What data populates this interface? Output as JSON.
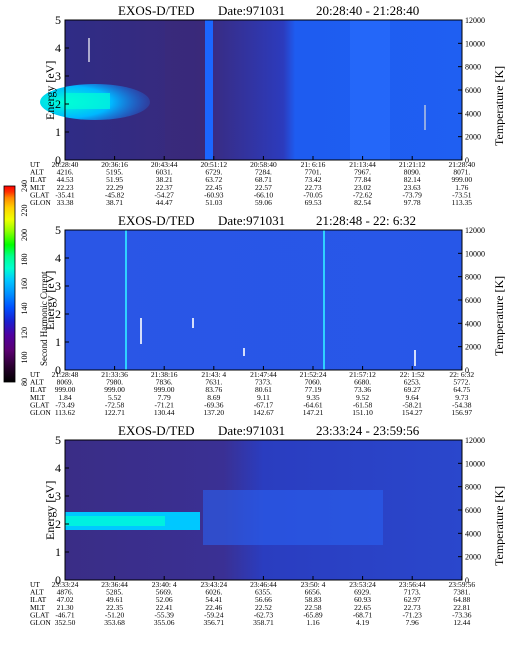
{
  "chart_data": {
    "type": "heatmap",
    "colorbar": {
      "label": "Second Harmonic Current",
      "ticks": [
        "80",
        "100",
        "120",
        "140",
        "160",
        "180",
        "200",
        "220",
        "240"
      ],
      "colors": [
        "#000000",
        "#2a0030",
        "#5a0070",
        "#5000a0",
        "#1a20d0",
        "#0050ff",
        "#0090ff",
        "#00c8ff",
        "#00ffd0",
        "#00ff90",
        "#00ff00",
        "#90ff00",
        "#f0ff00",
        "#ffd000",
        "#ff8800",
        "#ff3000",
        "#ff0000"
      ]
    },
    "panels": [
      {
        "title": "EXOS-D/TED",
        "date": "Date:971031",
        "time_range": "20:28:40 - 21:28:40",
        "ylabel_left": "Energy [eV]",
        "ylabel_right": "Temperature [K]",
        "yticks_left": [
          "0",
          "1",
          "2",
          "3",
          "4",
          "5"
        ],
        "yticks_right": [
          "0",
          "2000",
          "4000",
          "6000",
          "8000",
          "10000",
          "12000"
        ],
        "row_labels": [
          "UT",
          "ALT",
          "ILAT",
          "MLT",
          "GLAT",
          "GLON"
        ],
        "columns": [
          [
            "20:28:40",
            "4216.",
            "44.53",
            "22.23",
            "-35.41",
            "33.38"
          ],
          [
            "20:36:16",
            "5195.",
            "51.95",
            "22.29",
            "-45.82",
            "38.71"
          ],
          [
            "20:43:44",
            "6031.",
            "38.21",
            "22.37",
            "-54.27",
            "44.47"
          ],
          [
            "20:51:12",
            "6729.",
            "63.72",
            "22.45",
            "-60.93",
            "51.03"
          ],
          [
            "20:58:40",
            "7284.",
            "68.71",
            "22.57",
            "-66.10",
            "59.06"
          ],
          [
            "21: 6:16",
            "7701.",
            "73.42",
            "22.73",
            "-70.05",
            "69.53"
          ],
          [
            "21:13:44",
            "7967.",
            "77.84",
            "23.02",
            "-72.62",
            "82.54"
          ],
          [
            "21:21:12",
            "8090.",
            "82.14",
            "23.63",
            "-73.79",
            "97.78"
          ],
          [
            "21:28:40",
            "8071.",
            "999.00",
            "1.76",
            "-73.51",
            "113.35"
          ]
        ]
      },
      {
        "title": "EXOS-D/TED",
        "date": "Date:971031",
        "time_range": "21:28:48 - 22: 6:32",
        "ylabel_left": "Energy [eV]",
        "ylabel_right": "Temperature [K]",
        "yticks_left": [
          "0",
          "1",
          "2",
          "3",
          "4",
          "5"
        ],
        "yticks_right": [
          "0",
          "2000",
          "4000",
          "6000",
          "8000",
          "10000",
          "12000"
        ],
        "row_labels": [
          "UT",
          "ALT",
          "ILAT",
          "MLT",
          "GLAT",
          "GLON"
        ],
        "columns": [
          [
            "21:28:48",
            "8069.",
            "999.00",
            "1.84",
            "-73.49",
            "113.62"
          ],
          [
            "21:33:36",
            "7980.",
            "999.00",
            "5.52",
            "-72.58",
            "122.71"
          ],
          [
            "21:38:16",
            "7836.",
            "999.00",
            "7.79",
            "-71.21",
            "130.44"
          ],
          [
            "21:43: 4",
            "7631.",
            "83.76",
            "8.69",
            "-69.36",
            "137.20"
          ],
          [
            "21:47:44",
            "7373.",
            "80.61",
            "9.11",
            "-67.17",
            "142.67"
          ],
          [
            "21:52:24",
            "7060.",
            "77.19",
            "9.35",
            "-64.61",
            "147.21"
          ],
          [
            "21:57:12",
            "6680.",
            "73.36",
            "9.52",
            "-61.58",
            "151.10"
          ],
          [
            "22: 1:52",
            "6253.",
            "69.27",
            "9.64",
            "-58.21",
            "154.27"
          ],
          [
            "22: 6:32",
            "5772.",
            "64.75",
            "9.73",
            "-54.38",
            "156.97"
          ]
        ]
      },
      {
        "title": "EXOS-D/TED",
        "date": "Date:971031",
        "time_range": "23:33:24 - 23:59:56",
        "ylabel_left": "Energy [eV]",
        "ylabel_right": "Temperature [K]",
        "yticks_left": [
          "0",
          "1",
          "2",
          "3",
          "4",
          "5"
        ],
        "yticks_right": [
          "0",
          "2000",
          "4000",
          "6000",
          "8000",
          "10000",
          "12000"
        ],
        "row_labels": [
          "UT",
          "ALT",
          "ILAT",
          "MLT",
          "GLAT",
          "GLON"
        ],
        "columns": [
          [
            "23:33:24",
            "4876.",
            "47.02",
            "21.30",
            "-46.71",
            "352.50"
          ],
          [
            "23:36:44",
            "5285.",
            "49.61",
            "22.35",
            "-51.20",
            "353.68"
          ],
          [
            "23:40: 4",
            "5669.",
            "52.06",
            "22.41",
            "-55.39",
            "355.06"
          ],
          [
            "23:43:24",
            "6026.",
            "54.41",
            "22.46",
            "-59.24",
            "356.71"
          ],
          [
            "23:46:44",
            "6355.",
            "56.66",
            "22.52",
            "-62.73",
            "358.71"
          ],
          [
            "23:50: 4",
            "6656.",
            "58.83",
            "22.58",
            "-65.89",
            "1.16"
          ],
          [
            "23:53:24",
            "6929.",
            "60.93",
            "22.65",
            "-68.71",
            "4.19"
          ],
          [
            "23:56:44",
            "7173.",
            "62.97",
            "22.73",
            "-71.23",
            "7.96"
          ],
          [
            "23:59:56",
            "7381.",
            "64.88",
            "22.81",
            "-73.36",
            "12.44"
          ]
        ]
      }
    ]
  }
}
